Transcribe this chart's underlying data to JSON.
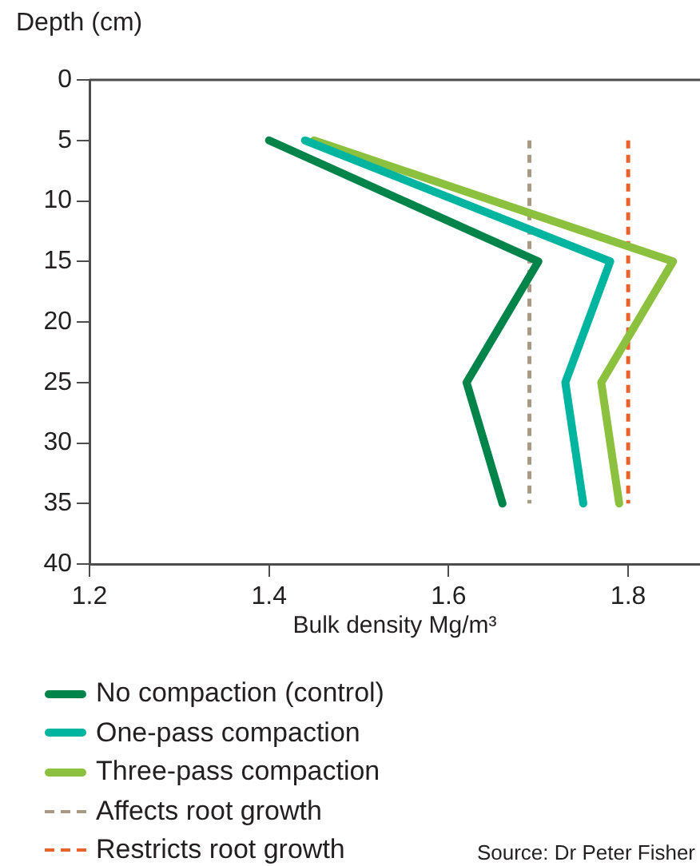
{
  "chart_data": {
    "type": "line",
    "xlabel": "Bulk density Mg/m³",
    "ylabel": "Depth (cm)",
    "xlim": [
      1.2,
      1.88
    ],
    "xticks": [
      1.2,
      1.4,
      1.6,
      1.8
    ],
    "ylim": [
      40,
      0
    ],
    "yticks": [
      0,
      5,
      10,
      15,
      20,
      25,
      30,
      35,
      40
    ],
    "grid": false,
    "legend": "bottom",
    "marker": "none",
    "line_style": "solid",
    "annotations": [
      "Source: Dr Peter Fisher"
    ],
    "series": [
      {
        "name": "No compaction (control)",
        "color": "#00844a",
        "x": [
          1.4,
          1.7,
          1.62,
          1.66
        ],
        "values": [
          5,
          15,
          25,
          35
        ]
      },
      {
        "name": "One-pass compaction",
        "color": "#00b5a0",
        "x": [
          1.44,
          1.78,
          1.73,
          1.75
        ],
        "values": [
          5,
          15,
          25,
          35
        ]
      },
      {
        "name": "Three-pass compaction",
        "color": "#8cc13f",
        "x": [
          1.45,
          1.85,
          1.77,
          1.79
        ],
        "values": [
          5,
          15,
          25,
          35
        ]
      },
      {
        "name": "Affects root growth",
        "color": "#a89a85",
        "line_style": "dashed",
        "x": [
          1.69,
          1.69
        ],
        "values": [
          5,
          35
        ]
      },
      {
        "name": "Restricts root growth",
        "color": "#e8622a",
        "line_style": "dashed",
        "x": [
          1.8,
          1.8
        ],
        "values": [
          5,
          35
        ]
      }
    ]
  }
}
